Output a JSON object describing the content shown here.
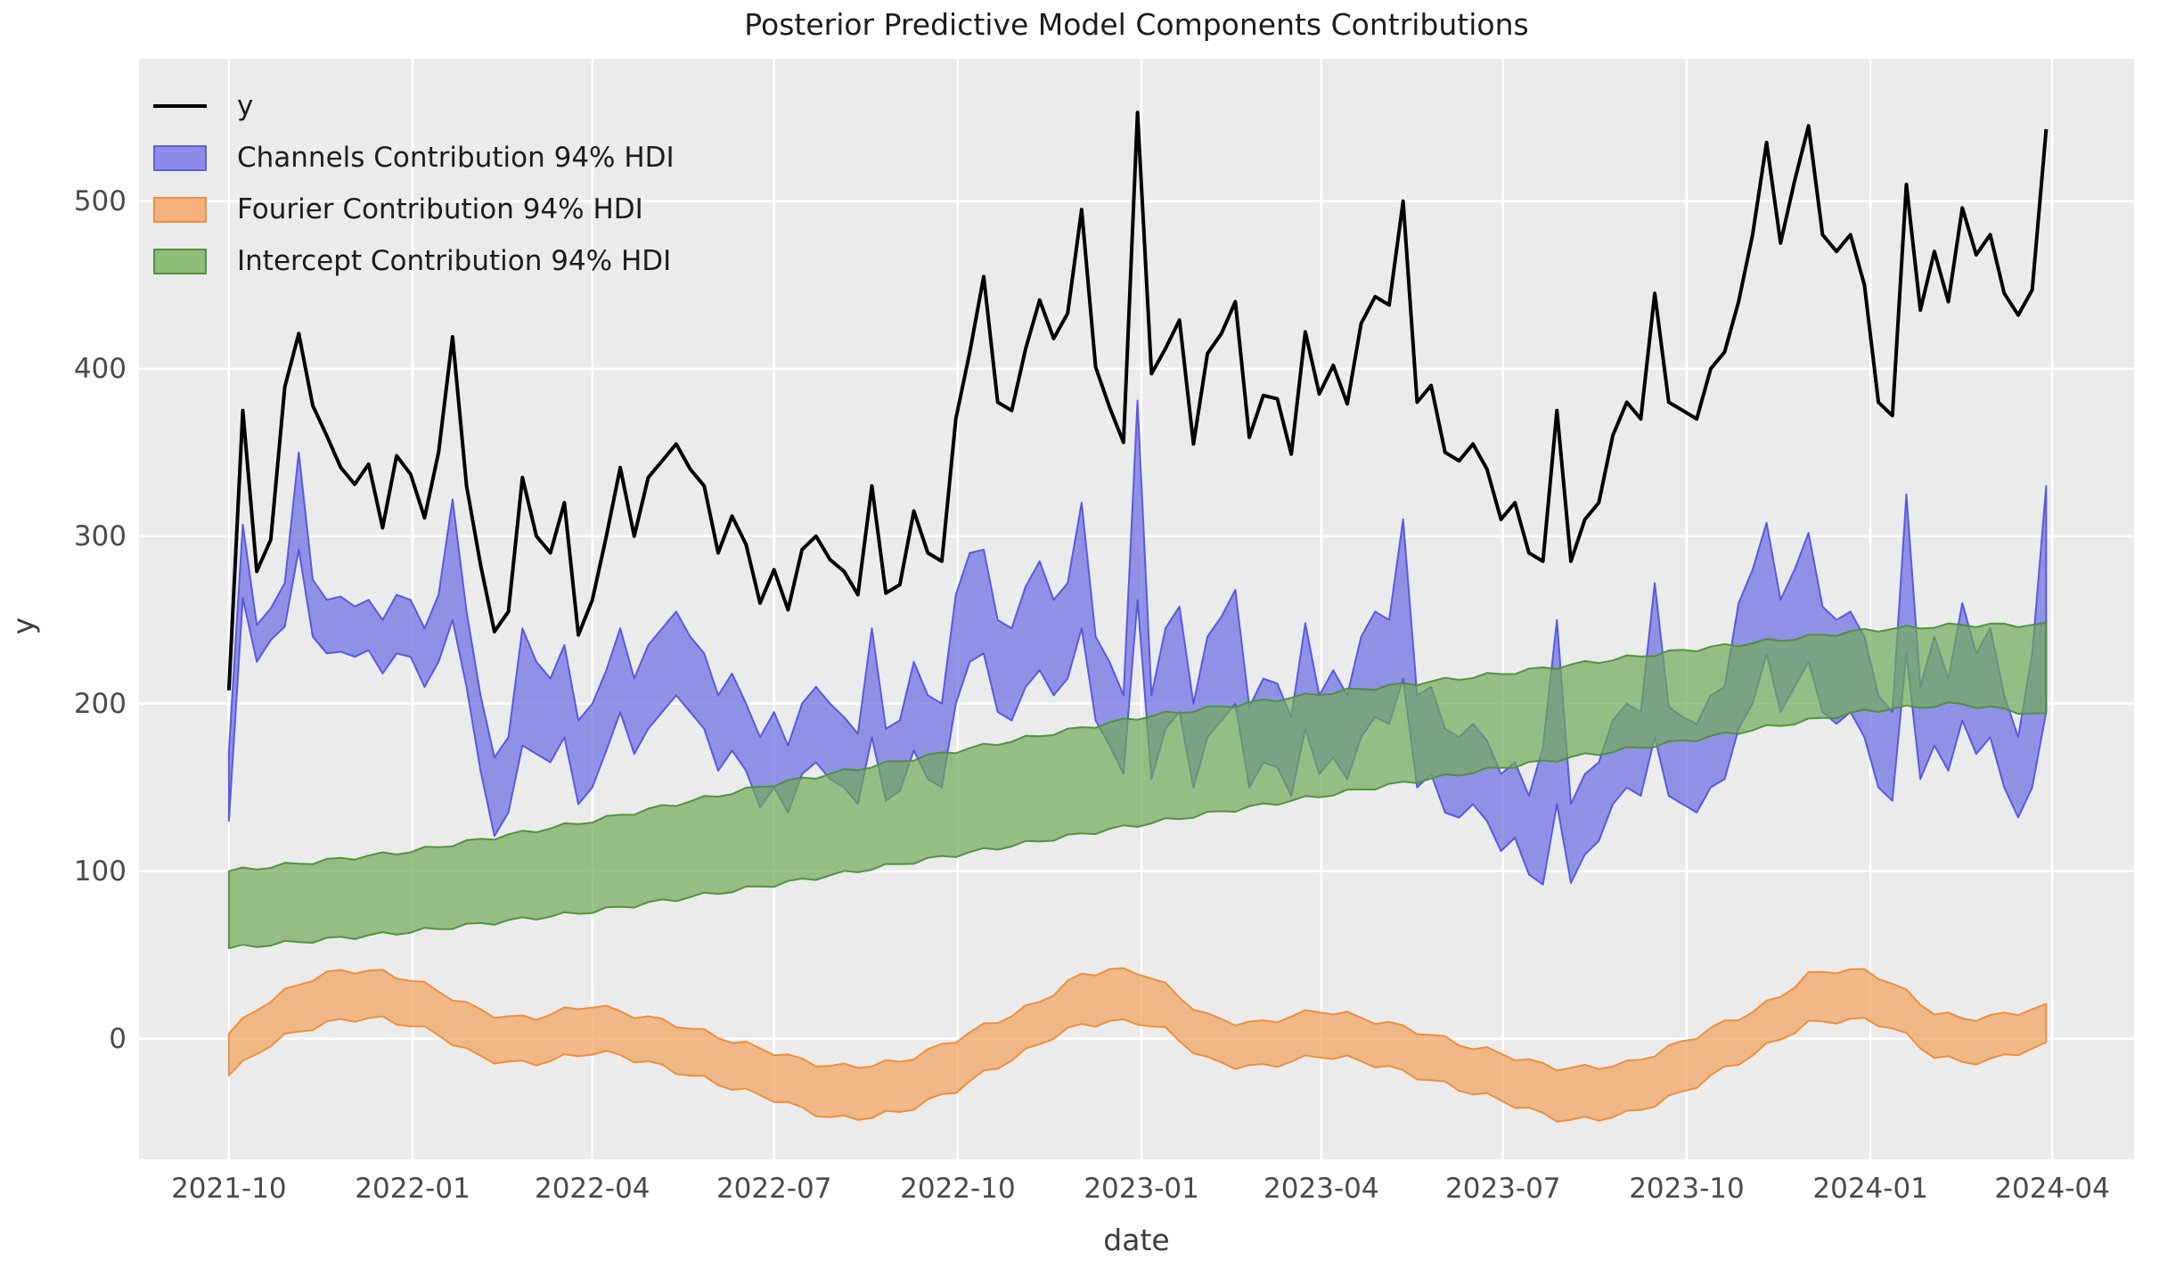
{
  "figure": {
    "title": "Posterior Predictive Model Components Contributions",
    "xlabel": "date",
    "ylabel": "y"
  },
  "legend": {
    "position": "upper left",
    "items": [
      {
        "label": "y",
        "type": "line",
        "color": "#000000"
      },
      {
        "label": "Channels Contribution 94% HDI",
        "type": "patch",
        "fill": "#8a8ce8",
        "edge": "#5c5fe3"
      },
      {
        "label": "Fourier Contribution 94% HDI",
        "type": "patch",
        "fill": "#f5b27f",
        "edge": "#ec8e3f"
      },
      {
        "label": "Intercept Contribution 94% HDI",
        "type": "patch",
        "fill": "#90bd78",
        "edge": "#4f9140"
      }
    ]
  },
  "colors": {
    "plot_background": "#ebebeb",
    "grid": "#ffffff",
    "y_line": "#000000",
    "channels_fill": "#6b6de0",
    "channels_edge": "#5155e0",
    "fourier_fill": "#f0a35e",
    "fourier_edge": "#ec8c3a",
    "intercept_fill": "#72a958",
    "intercept_edge": "#4c8f3c",
    "tick_text": "#4a4a4a",
    "title_text": "#1c1c1c"
  },
  "chart_data": {
    "type": "line",
    "title": "Posterior Predictive Model Components Contributions",
    "xlabel": "date",
    "ylabel": "y",
    "grid": true,
    "legend_position": "upper left",
    "x_axis": {
      "xlim": [
        "2021-08-17",
        "2024-05-12"
      ],
      "tick_dates": [
        "2021-10-01",
        "2022-01-01",
        "2022-04-01",
        "2022-07-01",
        "2022-10-01",
        "2023-01-01",
        "2023-04-01",
        "2023-07-01",
        "2023-10-01",
        "2024-01-01",
        "2024-04-01"
      ],
      "tick_labels": [
        "2021-10",
        "2022-01",
        "2022-04",
        "2022-07",
        "2022-10",
        "2023-01",
        "2023-04",
        "2023-07",
        "2023-10",
        "2024-01",
        "2024-04"
      ]
    },
    "y_axis": {
      "ylim": [
        -72,
        585
      ],
      "ticks": [
        0,
        100,
        200,
        300,
        400,
        500
      ]
    },
    "series": {
      "y": {
        "name": "y",
        "start": "2021-10-01",
        "step_days": 7,
        "values": [
          208,
          375,
          279,
          298,
          389,
          421,
          378,
          360,
          341,
          331,
          343,
          305,
          348,
          337,
          311,
          350,
          419,
          330,
          283,
          243,
          255,
          335,
          300,
          290,
          320,
          241,
          262,
          300,
          341,
          300,
          335,
          345,
          355,
          340,
          330,
          290,
          312,
          295,
          260,
          280,
          256,
          292,
          300,
          286,
          279,
          265,
          330,
          266,
          271,
          315,
          290,
          285,
          370,
          410,
          455,
          380,
          375,
          412,
          441,
          418,
          433,
          495,
          401,
          377,
          356,
          553,
          397,
          412,
          429,
          355,
          409,
          421,
          440,
          359,
          384,
          382,
          349,
          422,
          385,
          402,
          379,
          427,
          443,
          438,
          500,
          380,
          390,
          350,
          345,
          355,
          340,
          310,
          320,
          290,
          285,
          375,
          285,
          310,
          320,
          360,
          380,
          370,
          445,
          380,
          375,
          370,
          400,
          410,
          440,
          480,
          535,
          475,
          512,
          545,
          480,
          470,
          480,
          450,
          380,
          372,
          510,
          435,
          470,
          440,
          496,
          468,
          480,
          445,
          432,
          447,
          543
        ]
      },
      "channels_hdi": {
        "name": "Channels Contribution 94% HDI",
        "start": "2021-10-01",
        "step_days": 7,
        "lo": [
          130,
          263,
          225,
          238,
          246,
          292,
          240,
          230,
          231,
          228,
          232,
          218,
          230,
          228,
          210,
          225,
          250,
          210,
          160,
          121,
          135,
          175,
          170,
          165,
          180,
          140,
          150,
          172,
          195,
          170,
          185,
          195,
          205,
          195,
          185,
          160,
          172,
          160,
          138,
          150,
          135,
          158,
          165,
          155,
          150,
          140,
          180,
          142,
          148,
          172,
          155,
          150,
          200,
          225,
          230,
          195,
          190,
          210,
          220,
          205,
          215,
          245,
          190,
          175,
          158,
          262,
          155,
          185,
          195,
          150,
          180,
          190,
          200,
          150,
          165,
          162,
          145,
          185,
          158,
          168,
          155,
          180,
          192,
          188,
          215,
          150,
          158,
          135,
          132,
          140,
          130,
          112,
          120,
          98,
          92,
          140,
          93,
          110,
          118,
          140,
          150,
          145,
          180,
          145,
          140,
          135,
          150,
          155,
          185,
          200,
          230,
          195,
          210,
          225,
          195,
          188,
          195,
          180,
          150,
          142,
          230,
          155,
          175,
          160,
          190,
          170,
          180,
          150,
          132,
          150,
          195
        ],
        "hi": [
          172,
          307,
          247,
          257,
          272,
          350,
          274,
          262,
          264,
          258,
          262,
          250,
          265,
          262,
          245,
          265,
          322,
          255,
          205,
          168,
          180,
          245,
          225,
          215,
          235,
          190,
          200,
          220,
          245,
          215,
          235,
          245,
          255,
          240,
          230,
          205,
          218,
          200,
          180,
          195,
          175,
          200,
          210,
          200,
          192,
          182,
          245,
          185,
          190,
          225,
          205,
          200,
          265,
          290,
          292,
          250,
          245,
          270,
          285,
          262,
          272,
          320,
          240,
          225,
          205,
          381,
          205,
          245,
          258,
          200,
          240,
          252,
          268,
          198,
          215,
          212,
          192,
          248,
          205,
          220,
          205,
          240,
          255,
          250,
          310,
          205,
          210,
          185,
          180,
          188,
          178,
          158,
          165,
          145,
          174,
          250,
          140,
          158,
          165,
          190,
          200,
          195,
          272,
          198,
          192,
          188,
          205,
          210,
          260,
          280,
          308,
          262,
          280,
          302,
          258,
          250,
          255,
          240,
          205,
          195,
          325,
          210,
          240,
          215,
          260,
          230,
          245,
          205,
          180,
          230,
          330
        ]
      },
      "fourier_hdi": {
        "name": "Fourier Contribution 94% HDI",
        "points": [
          [
            "2021-10-01",
            -22,
            3
          ],
          [
            "2021-10-15",
            -8,
            18
          ],
          [
            "2021-11-01",
            3,
            30
          ],
          [
            "2021-11-15",
            8,
            38
          ],
          [
            "2021-12-01",
            12,
            41
          ],
          [
            "2021-12-15",
            12,
            40
          ],
          [
            "2022-01-01",
            8,
            35
          ],
          [
            "2022-01-15",
            2,
            28
          ],
          [
            "2022-02-01",
            -10,
            18
          ],
          [
            "2022-02-15",
            -14,
            13
          ],
          [
            "2022-03-01",
            -15,
            12
          ],
          [
            "2022-03-15",
            -12,
            16
          ],
          [
            "2022-04-01",
            -8,
            20
          ],
          [
            "2022-04-15",
            -10,
            16
          ],
          [
            "2022-05-01",
            -15,
            12
          ],
          [
            "2022-05-15",
            -20,
            8
          ],
          [
            "2022-06-01",
            -26,
            2
          ],
          [
            "2022-06-15",
            -31,
            -3
          ],
          [
            "2022-07-01",
            -36,
            -8
          ],
          [
            "2022-07-15",
            -42,
            -13
          ],
          [
            "2022-08-01",
            -48,
            -17
          ],
          [
            "2022-08-15",
            -47,
            -16
          ],
          [
            "2022-09-01",
            -44,
            -14
          ],
          [
            "2022-09-15",
            -38,
            -8
          ],
          [
            "2022-10-01",
            -30,
            0
          ],
          [
            "2022-10-15",
            -20,
            8
          ],
          [
            "2022-11-01",
            -10,
            16
          ],
          [
            "2022-11-15",
            0,
            25
          ],
          [
            "2022-12-01",
            8,
            38
          ],
          [
            "2022-12-15",
            10,
            41
          ],
          [
            "2023-01-01",
            10,
            40
          ],
          [
            "2023-01-15",
            4,
            30
          ],
          [
            "2023-02-01",
            -12,
            14
          ],
          [
            "2023-02-15",
            -16,
            10
          ],
          [
            "2023-03-01",
            -17,
            9
          ],
          [
            "2023-03-15",
            -14,
            13
          ],
          [
            "2023-04-01",
            -10,
            17
          ],
          [
            "2023-04-15",
            -12,
            14
          ],
          [
            "2023-05-01",
            -16,
            10
          ],
          [
            "2023-05-15",
            -21,
            6
          ],
          [
            "2023-06-01",
            -27,
            0
          ],
          [
            "2023-06-15",
            -32,
            -5
          ],
          [
            "2023-07-01",
            -37,
            -9
          ],
          [
            "2023-07-15",
            -43,
            -14
          ],
          [
            "2023-08-01",
            -49,
            -18
          ],
          [
            "2023-08-15",
            -48,
            -17
          ],
          [
            "2023-09-01",
            -45,
            -15
          ],
          [
            "2023-09-15",
            -39,
            -9
          ],
          [
            "2023-10-01",
            -31,
            -1
          ],
          [
            "2023-10-15",
            -21,
            7
          ],
          [
            "2023-11-01",
            -11,
            15
          ],
          [
            "2023-11-15",
            -1,
            24
          ],
          [
            "2023-12-01",
            9,
            38
          ],
          [
            "2023-12-15",
            11,
            41
          ],
          [
            "2024-01-01",
            11,
            40
          ],
          [
            "2024-01-15",
            5,
            31
          ],
          [
            "2024-02-01",
            -10,
            16
          ],
          [
            "2024-02-15",
            -14,
            12
          ],
          [
            "2024-03-01",
            -13,
            13
          ],
          [
            "2024-03-15",
            -8,
            16
          ],
          [
            "2024-03-29",
            -4,
            19
          ]
        ]
      },
      "intercept_hdi": {
        "name": "Intercept Contribution 94% HDI",
        "points": [
          [
            "2021-10-01",
            54,
            100
          ],
          [
            "2022-01-01",
            64,
            112
          ],
          [
            "2022-04-01",
            76,
            130
          ],
          [
            "2022-07-01",
            92,
            152
          ],
          [
            "2022-10-01",
            110,
            172
          ],
          [
            "2023-01-01",
            128,
            192
          ],
          [
            "2023-04-01",
            145,
            206
          ],
          [
            "2023-07-01",
            162,
            218
          ],
          [
            "2023-10-01",
            178,
            232
          ],
          [
            "2024-01-01",
            196,
            244
          ],
          [
            "2024-02-15",
            200,
            247
          ],
          [
            "2024-03-29",
            193,
            247
          ]
        ]
      }
    }
  }
}
